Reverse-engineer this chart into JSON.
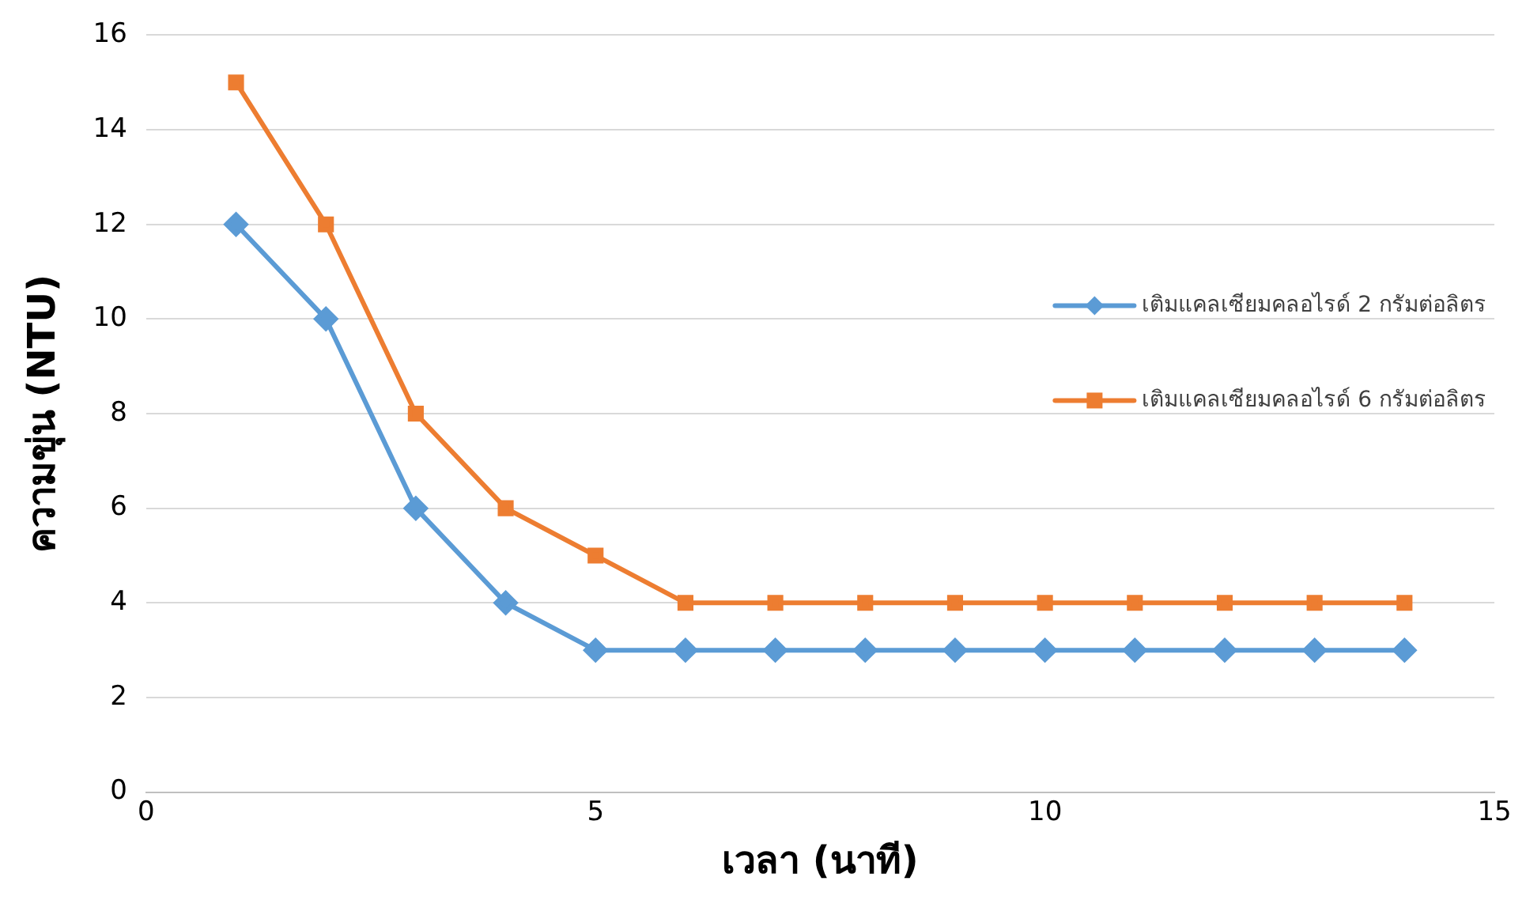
{
  "chart_data": {
    "type": "line",
    "xlabel": "เวลา (นาที)",
    "ylabel": "ความขุ่น (NTU)",
    "x": [
      1,
      2,
      3,
      4,
      5,
      6,
      7,
      8,
      9,
      10,
      11,
      12,
      13,
      14
    ],
    "series": [
      {
        "name": "เติมแคลเซียมคลอไรด์ 2 กรัมต่อลิตร",
        "color": "#5b9bd5",
        "marker": "diamond",
        "values": [
          12,
          10,
          6,
          4,
          3,
          3,
          3,
          3,
          3,
          3,
          3,
          3,
          3,
          3
        ]
      },
      {
        "name": "เติมแคลเซียมคลอไรด์ 6 กรัมต่อลิตร",
        "color": "#ed7d31",
        "marker": "square",
        "values": [
          15,
          12,
          8,
          6,
          5,
          4,
          4,
          4,
          4,
          4,
          4,
          4,
          4,
          4
        ]
      }
    ],
    "xlim": [
      0,
      15
    ],
    "xticks": [
      0,
      5,
      10,
      15
    ],
    "ylim": [
      0,
      16
    ],
    "yticks": [
      0,
      2,
      4,
      6,
      8,
      10,
      12,
      14,
      16
    ],
    "grid": "y",
    "legend": "right"
  }
}
